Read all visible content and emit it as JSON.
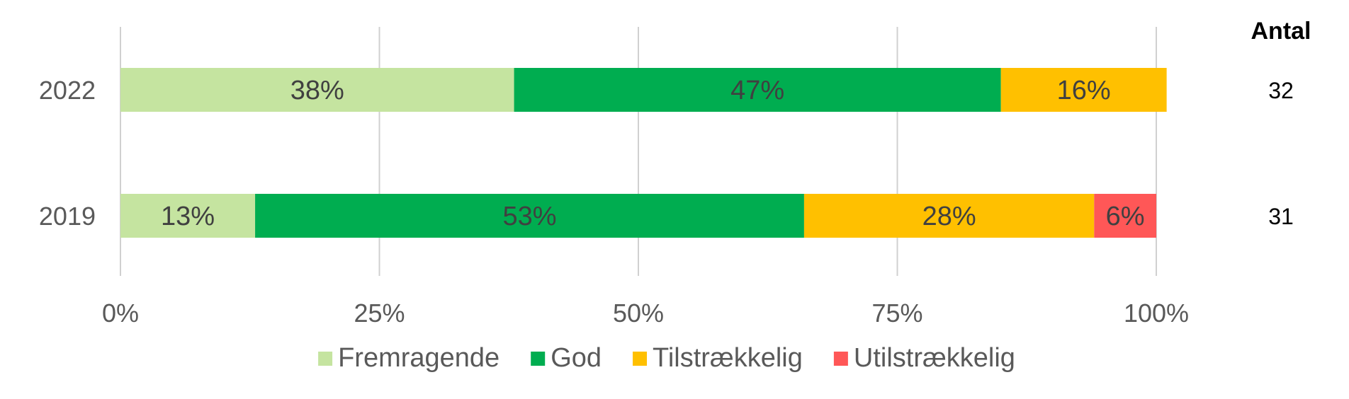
{
  "chart_data": {
    "type": "bar",
    "orientation": "horizontal",
    "stacked": "percent",
    "categories": [
      "2022",
      "2019"
    ],
    "series": [
      {
        "name": "Fremragende",
        "color": "#C5E4A0",
        "values": [
          38,
          13
        ],
        "labels": [
          "38%",
          "13%"
        ]
      },
      {
        "name": "God",
        "color": "#00AD50",
        "values": [
          47,
          53
        ],
        "labels": [
          "47%",
          "53%"
        ]
      },
      {
        "name": "Tilstrækkelig",
        "color": "#FFC000",
        "values": [
          16,
          28
        ],
        "labels": [
          "16%",
          "28%"
        ]
      },
      {
        "name": "Utilstrækkelig",
        "color": "#FF5757",
        "values": [
          0,
          6
        ],
        "labels": [
          "",
          "6%"
        ]
      }
    ],
    "xlim": [
      0,
      100
    ],
    "xticks": [
      0,
      25,
      50,
      75,
      100
    ],
    "xtick_labels": [
      "0%",
      "25%",
      "50%",
      "75%",
      "100%"
    ],
    "grid": "vertical",
    "legend": "bottom",
    "count_column": {
      "header": "Antal",
      "values": [
        "32",
        "31"
      ]
    }
  }
}
